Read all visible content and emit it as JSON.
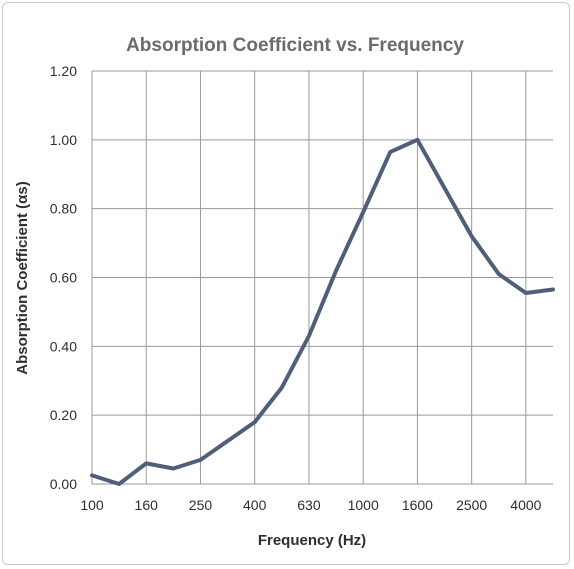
{
  "chart_data": {
    "type": "line",
    "title": "Absorption Coefficient vs. Frequency",
    "xlabel": "Frequency (Hz)",
    "ylabel": "Absorption Coefficient (αs)",
    "x": [
      "100",
      "125",
      "160",
      "200",
      "250",
      "315",
      "400",
      "500",
      "630",
      "800",
      "1000",
      "1250",
      "1600",
      "2000",
      "2500",
      "3150",
      "4000",
      "5000"
    ],
    "x_tick_labels": [
      "100",
      "160",
      "250",
      "400",
      "630",
      "1000",
      "1600",
      "2500",
      "4000"
    ],
    "y_tick_labels": [
      "0.00",
      "0.20",
      "0.40",
      "0.60",
      "0.80",
      "1.00",
      "1.20"
    ],
    "ylim": [
      0,
      1.2
    ],
    "series": [
      {
        "values": [
          0.025,
          0.0,
          0.06,
          0.045,
          0.07,
          0.125,
          0.18,
          0.28,
          0.43,
          0.62,
          0.79,
          0.965,
          1.0,
          0.86,
          0.72,
          0.61,
          0.555,
          0.565
        ],
        "color": "#4f5f78"
      }
    ],
    "grid": true
  }
}
